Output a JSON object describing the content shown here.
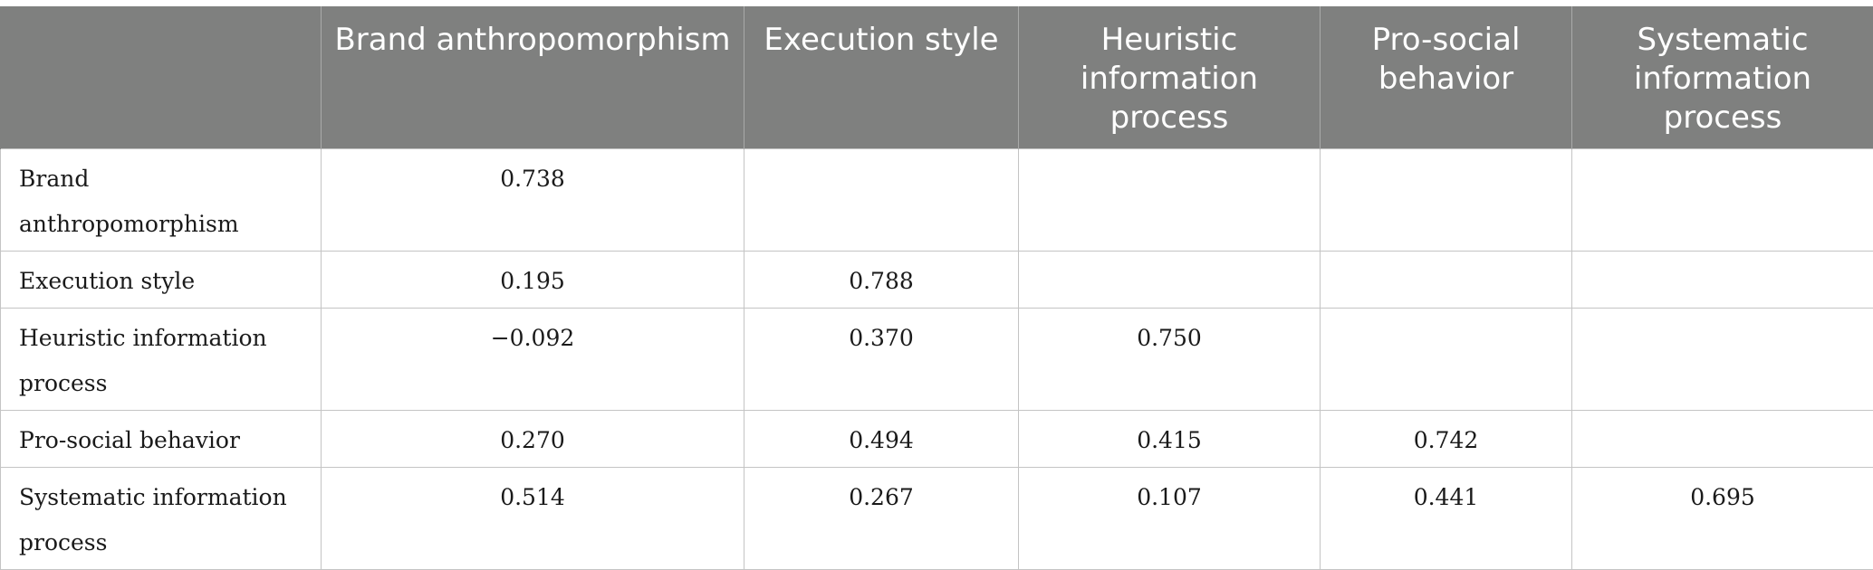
{
  "table": {
    "columns": [
      "",
      "Brand anthropomorphism",
      "Execution style",
      "Heuristic information process",
      "Pro-social behavior",
      "Systematic information process"
    ],
    "rows": [
      {
        "label": "Brand anthropomorphism",
        "cells": [
          "0.738",
          "",
          "",
          "",
          ""
        ]
      },
      {
        "label": "Execution style",
        "cells": [
          "0.195",
          "0.788",
          "",
          "",
          ""
        ]
      },
      {
        "label": "Heuristic information process",
        "cells": [
          "−0.092",
          "0.370",
          "0.750",
          "",
          ""
        ]
      },
      {
        "label": "Pro-social behavior",
        "cells": [
          "0.270",
          "0.494",
          "0.415",
          "0.742",
          ""
        ]
      },
      {
        "label": "Systematic information process",
        "cells": [
          "0.514",
          "0.267",
          "0.107",
          "0.441",
          "0.695"
        ]
      }
    ]
  }
}
